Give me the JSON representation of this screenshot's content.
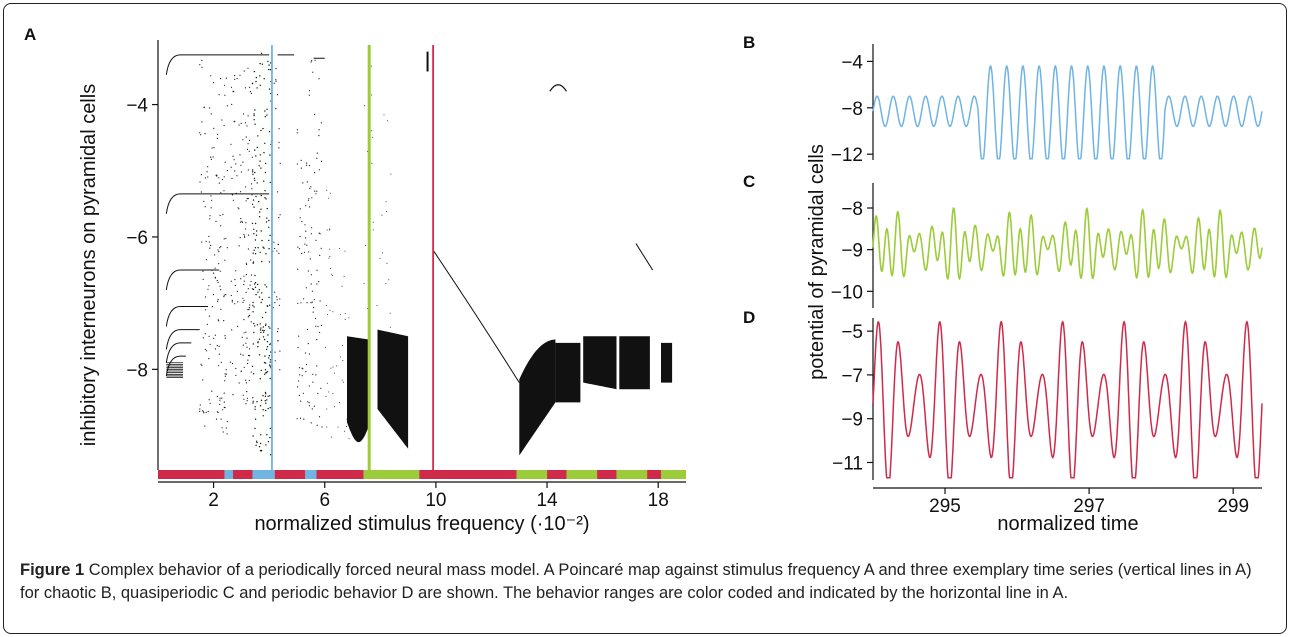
{
  "caption": {
    "label": "Figure 1",
    "text": "Complex behavior of a periodically forced neural mass model. A Poincaré map against stimulus frequency A and three exemplary time series (vertical lines in A) for chaotic B, quasiperiodic C and periodic behavior D are shown. The behavior ranges are color coded and indicated by the horizontal line in A."
  },
  "colors": {
    "chaotic": "#6fb4e3",
    "quasiperiodic": "#9ccc3a",
    "periodic": "#cf2a4a",
    "points": "#111111"
  },
  "chart_data": [
    {
      "panel": "A",
      "type": "scatter",
      "xlabel": "normalized stimulus frequency (·10⁻²)",
      "ylabel": "inhibitory interneurons on pyramidal cells",
      "xticks": [
        "2",
        "6",
        "10",
        "14",
        "18"
      ],
      "yticks": [
        "−4",
        "−6",
        "−8"
      ],
      "xlim": [
        0,
        19
      ],
      "ylim": [
        -9.4,
        -3.1
      ],
      "markers": [
        {
          "x": 4.1,
          "color": "chaotic"
        },
        {
          "x": 7.6,
          "color": "quasiperiodic"
        },
        {
          "x": 9.9,
          "color": "periodic"
        }
      ],
      "behavior_bar": [
        {
          "from": 0.0,
          "to": 2.4,
          "behavior": "periodic"
        },
        {
          "from": 2.4,
          "to": 2.7,
          "behavior": "chaotic"
        },
        {
          "from": 2.7,
          "to": 3.4,
          "behavior": "periodic"
        },
        {
          "from": 3.4,
          "to": 4.2,
          "behavior": "chaotic"
        },
        {
          "from": 4.2,
          "to": 5.3,
          "behavior": "periodic"
        },
        {
          "from": 5.3,
          "to": 5.7,
          "behavior": "chaotic"
        },
        {
          "from": 5.7,
          "to": 7.4,
          "behavior": "periodic"
        },
        {
          "from": 7.4,
          "to": 9.4,
          "behavior": "quasiperiodic"
        },
        {
          "from": 9.4,
          "to": 12.9,
          "behavior": "periodic"
        },
        {
          "from": 12.9,
          "to": 14.0,
          "behavior": "quasiperiodic"
        },
        {
          "from": 14.0,
          "to": 14.7,
          "behavior": "periodic"
        },
        {
          "from": 14.7,
          "to": 15.8,
          "behavior": "quasiperiodic"
        },
        {
          "from": 15.8,
          "to": 16.5,
          "behavior": "periodic"
        },
        {
          "from": 16.5,
          "to": 17.6,
          "behavior": "quasiperiodic"
        },
        {
          "from": 17.6,
          "to": 18.1,
          "behavior": "periodic"
        },
        {
          "from": 18.1,
          "to": 19.0,
          "behavior": "quasiperiodic"
        }
      ]
    },
    {
      "panel": "B",
      "type": "line",
      "color": "chaotic",
      "yticks": [
        "−4",
        "−8",
        "−12"
      ],
      "ylim": [
        -12.5,
        -2.5
      ],
      "xlim": [
        294,
        299.4
      ]
    },
    {
      "panel": "C",
      "type": "line",
      "color": "quasiperiodic",
      "yticks": [
        "−8",
        "−9",
        "−10"
      ],
      "ylim": [
        -10.4,
        -7.4
      ],
      "xlim": [
        294,
        299.4
      ]
    },
    {
      "panel": "D",
      "type": "line",
      "color": "periodic",
      "yticks": [
        "−5",
        "−7",
        "−9",
        "−11"
      ],
      "ylim": [
        -11.8,
        -4.4
      ],
      "xlim": [
        294,
        299.4
      ],
      "xticks": [
        "295",
        "297",
        "299"
      ],
      "xlabel": "normalized time"
    }
  ],
  "shared_ylabel": "potential of pyramidal cells"
}
